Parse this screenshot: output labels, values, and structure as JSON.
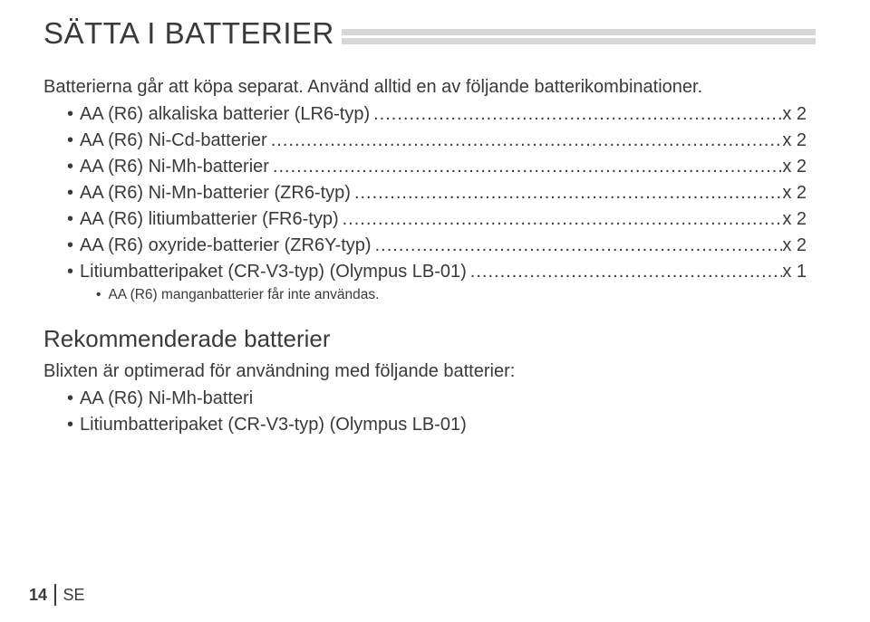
{
  "heading": "SÄTTA I BATTERIER",
  "intro": "Batterierna går att köpa separat. Använd alltid en av följande batterikombinationer.",
  "battery_items": [
    {
      "label": "AA (R6) alkaliska batterier (LR6-typ)",
      "qty": "x 2"
    },
    {
      "label": "AA (R6) Ni-Cd-batterier",
      "qty": "x 2"
    },
    {
      "label": "AA (R6) Ni-Mh-batterier",
      "qty": "x 2"
    },
    {
      "label": "AA (R6) Ni-Mn-batterier (ZR6-typ)",
      "qty": "x 2"
    },
    {
      "label": "AA (R6) litiumbatterier (FR6-typ)",
      "qty": "x 2"
    },
    {
      "label": "AA (R6) oxyride-batterier (ZR6Y-typ)",
      "qty": "x 2"
    },
    {
      "label": "Litiumbatteripaket (CR-V3-typ) (Olympus LB-01)",
      "qty": "x 1"
    }
  ],
  "note": "AA (R6) manganbatterier får inte användas.",
  "subheading": "Rekommenderade batterier",
  "subintro": "Blixten är optimerad för användning med följande batterier:",
  "rec_items": [
    "AA (R6) Ni-Mh-batteri",
    "Litiumbatteripaket (CR-V3-typ) (Olympus LB-01)"
  ],
  "footer": {
    "page": "14",
    "lang": "SE"
  },
  "style": {
    "page_bg": "#ffffff",
    "text_color": "#3a3a3a",
    "bar_color": "#d7d7d7",
    "heading_fontsize": 33,
    "body_fontsize": 20,
    "subheading_fontsize": 26,
    "note_fontsize": 15.5,
    "footer_fontsize": 18
  }
}
